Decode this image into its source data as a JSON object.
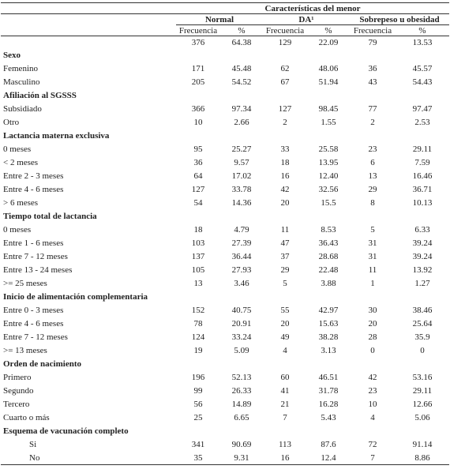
{
  "header": {
    "title": "Características del menor",
    "groups": [
      "Normal",
      "DA¹",
      "Sobrepeso u obesidad"
    ],
    "subheaders": [
      "Frecuencia",
      "%",
      "Frecuencia",
      "%",
      "Frecuencia",
      "%"
    ]
  },
  "total": {
    "cells": [
      "376",
      "64.38",
      "129",
      "22.09",
      "79",
      "13.53"
    ]
  },
  "sections": [
    {
      "title": "Sexo",
      "rows": [
        {
          "label": "Femenino",
          "cells": [
            "171",
            "45.48",
            "62",
            "48.06",
            "36",
            "45.57"
          ]
        },
        {
          "label": "Masculino",
          "cells": [
            "205",
            "54.52",
            "67",
            "51.94",
            "43",
            "54.43"
          ]
        }
      ]
    },
    {
      "title": "Afiliación al SGSSS",
      "rows": [
        {
          "label": "Subsidiado",
          "cells": [
            "366",
            "97.34",
            "127",
            "98.45",
            "77",
            "97.47"
          ]
        },
        {
          "label": "Otro",
          "cells": [
            "10",
            "2.66",
            "2",
            "1.55",
            "2",
            "2.53"
          ]
        }
      ]
    },
    {
      "title": "Lactancia materna exclusiva",
      "rows": [
        {
          "label": "0 meses",
          "cells": [
            "95",
            "25.27",
            "33",
            "25.58",
            "23",
            "29.11"
          ]
        },
        {
          "label": "< 2 meses",
          "cells": [
            "36",
            "9.57",
            "18",
            "13.95",
            "6",
            "7.59"
          ]
        },
        {
          "label": "Entre 2 - 3 meses",
          "cells": [
            "64",
            "17.02",
            "16",
            "12.40",
            "13",
            "16.46"
          ]
        },
        {
          "label": "Entre 4 - 6 meses",
          "cells": [
            "127",
            "33.78",
            "42",
            "32.56",
            "29",
            "36.71"
          ]
        },
        {
          "label": "> 6 meses",
          "cells": [
            "54",
            "14.36",
            "20",
            "15.5",
            "8",
            "10.13"
          ]
        }
      ]
    },
    {
      "title": "Tiempo total de lactancia",
      "rows": [
        {
          "label": "0 meses",
          "cells": [
            "18",
            "4.79",
            "11",
            "8.53",
            "5",
            "6.33"
          ]
        },
        {
          "label": "Entre 1 - 6 meses",
          "cells": [
            "103",
            "27.39",
            "47",
            "36.43",
            "31",
            "39.24"
          ]
        },
        {
          "label": "Entre 7 - 12 meses",
          "cells": [
            "137",
            "36.44",
            "37",
            "28.68",
            "31",
            "39.24"
          ]
        },
        {
          "label": "Entre 13 - 24 meses",
          "cells": [
            "105",
            "27.93",
            "29",
            "22.48",
            "11",
            "13.92"
          ]
        },
        {
          "label": ">= 25 meses",
          "cells": [
            "13",
            "3.46",
            "5",
            "3.88",
            "1",
            "1.27"
          ]
        }
      ]
    },
    {
      "title": "Inicio de alimentación complementaria",
      "rows": [
        {
          "label": "Entre 0 - 3 meses",
          "cells": [
            "152",
            "40.75",
            "55",
            "42.97",
            "30",
            "38.46"
          ]
        },
        {
          "label": "Entre 4 - 6 meses",
          "cells": [
            "78",
            "20.91",
            "20",
            "15.63",
            "20",
            "25.64"
          ]
        },
        {
          "label": "Entre 7 - 12 meses",
          "cells": [
            "124",
            "33.24",
            "49",
            "38.28",
            "28",
            "35.9"
          ]
        },
        {
          "label": ">= 13 meses",
          "cells": [
            "19",
            "5.09",
            "4",
            "3.13",
            "0",
            "0"
          ]
        }
      ]
    },
    {
      "title": "Orden de nacimiento",
      "rows": [
        {
          "label": "Primero",
          "cells": [
            "196",
            "52.13",
            "60",
            "46.51",
            "42",
            "53.16"
          ]
        },
        {
          "label": "Segundo",
          "cells": [
            "99",
            "26.33",
            "41",
            "31.78",
            "23",
            "29.11"
          ]
        },
        {
          "label": "Tercero",
          "cells": [
            "56",
            "14.89",
            "21",
            "16.28",
            "10",
            "12.66"
          ]
        },
        {
          "label": "Cuarto o más",
          "cells": [
            "25",
            "6.65",
            "7",
            "5.43",
            "4",
            "5.06"
          ]
        }
      ]
    },
    {
      "title": "Esquema de vacunación completo",
      "rows": [
        {
          "label": "Si",
          "cells": [
            "341",
            "90.69",
            "113",
            "87.6",
            "72",
            "91.14"
          ]
        },
        {
          "label": "No",
          "cells": [
            "35",
            "9.31",
            "16",
            "12.4",
            "7",
            "8.86"
          ]
        }
      ]
    }
  ]
}
